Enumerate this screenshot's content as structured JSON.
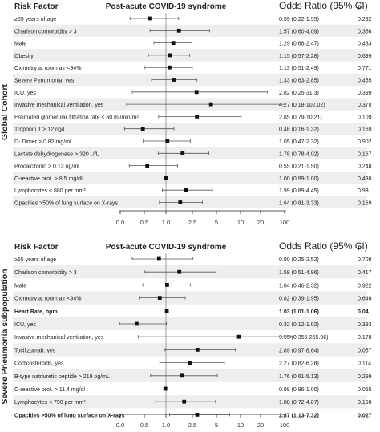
{
  "chart_data": [
    {
      "type": "forest",
      "group_label": "Global Cohort",
      "header": {
        "factor": "Risk Factor",
        "title": "Post-acute COVID-19 syndrome",
        "or": "Odds Ratio (95% CI)",
        "p": "p"
      },
      "x_ticks": [
        "0.0",
        "0.5",
        "1.0",
        "2.5",
        "5",
        "10",
        "20",
        "100"
      ],
      "x_tick_values": [
        0.125,
        0.5,
        1.0,
        2.5,
        5,
        10,
        20,
        100
      ],
      "reference_line": 1.0,
      "rows": [
        {
          "label": "≥65 years of age",
          "or": 0.59,
          "lo": 0.22,
          "hi": 1.55,
          "or_text": "0.59 (0.22-1.55)",
          "p": "0.292",
          "bold": false
        },
        {
          "label": "Charlson comorbidity > 3",
          "or": 1.57,
          "lo": 0.6,
          "hi": 4.09,
          "or_text": "1.57 (0.60-4.09)",
          "p": "0.356",
          "bold": false
        },
        {
          "label": "Male",
          "or": 1.29,
          "lo": 0.68,
          "hi": 2.47,
          "or_text": "1.29 (0.68-2.47)",
          "p": "0.433",
          "bold": false
        },
        {
          "label": "Obesity",
          "or": 1.15,
          "lo": 0.57,
          "hi": 2.28,
          "or_text": "1.15 (0.57-2.28)",
          "p": "0.699",
          "bold": false
        },
        {
          "label": "Oximetry at room air <94%",
          "or": 1.13,
          "lo": 0.51,
          "hi": 2.49,
          "or_text": "1.13 (0.51-2.49)",
          "p": "0.771",
          "bold": false
        },
        {
          "label": "Severe Penumonia, yes",
          "or": 1.33,
          "lo": 0.63,
          "hi": 2.85,
          "or_text": "1.33 (0.63-2.85)",
          "p": "0.455",
          "bold": false
        },
        {
          "label": "ICU, yes",
          "or": 2.82,
          "lo": 0.25,
          "hi": 31.3,
          "or_text": "2.82 (0.25-31.3)",
          "p": "0.399",
          "bold": false
        },
        {
          "label": "Invasive mechanical ventilation, yes",
          "or": 4.27,
          "lo": 0.18,
          "hi": 102.02,
          "or_text": "4.27 (0.18-102.02)",
          "p": "0.370",
          "bold": false
        },
        {
          "label": "Estimated glomerular filtration rate ≤ 60 ml/min/m²",
          "or": 2.85,
          "lo": 0.79,
          "hi": 10.21,
          "or_text": "2.85 (0.79-10.21)",
          "p": "0.109",
          "bold": false
        },
        {
          "label": "Troponin T > 12 ng/L",
          "or": 0.46,
          "lo": 0.16,
          "hi": 1.32,
          "or_text": "0.46 (0.16-1.32)",
          "p": "0.169",
          "bold": false
        },
        {
          "label": "D- Dimer > 0.82 mg/mL",
          "or": 1.05,
          "lo": 0.47,
          "hi": 2.32,
          "or_text": "1.05 (0.47-2.32)",
          "p": "0.902",
          "bold": false
        },
        {
          "label": "Lactate dehydrogenase > 320 U/L",
          "or": 1.78,
          "lo": 0.78,
          "hi": 4.02,
          "or_text": "1.78 (0.78-4.02)",
          "p": "0.167",
          "bold": false
        },
        {
          "label": "Procalcitonin > 0.13 ng/ml",
          "or": 0.55,
          "lo": 0.21,
          "hi": 1.5,
          "or_text": "0.55 (0.21-1.50)",
          "p": "0.248",
          "bold": false
        },
        {
          "label": "C-reactive prot. > 8.5 mg/dl",
          "or": 1.0,
          "lo": 0.99,
          "hi": 1.0,
          "or_text": "1.00 (0.99-1.00)",
          "p": "0.438",
          "bold": false
        },
        {
          "label": "Lymphocytes < 880 per mm³",
          "or": 1.99,
          "lo": 0.89,
          "hi": 4.45,
          "or_text": "1.99 (0.89-4.45)",
          "p": "0.93",
          "bold": false
        },
        {
          "label": "Opacities >50% of lung surface on X-rays",
          "or": 1.64,
          "lo": 0.81,
          "hi": 3.33,
          "or_text": "1.64 (0.81-3.33)",
          "p": "0.169",
          "bold": false
        }
      ]
    },
    {
      "type": "forest",
      "group_label": "Severe Pneumonia subpopulation",
      "header": {
        "factor": "Risk Factor",
        "title": "Post-acute COVID-19 syndrome",
        "or": "Odds Ratio (95% CI)",
        "p": "p"
      },
      "x_ticks": [
        "0.0",
        "0.5",
        "1.0",
        "2.5",
        "5",
        "10",
        "20",
        "100"
      ],
      "x_tick_values": [
        0.125,
        0.5,
        1.0,
        2.5,
        5,
        10,
        20,
        100
      ],
      "reference_line": 1.0,
      "rows": [
        {
          "label": "≥65 years of age",
          "or": 0.8,
          "lo": 0.25,
          "hi": 2.52,
          "or_text": "0.80 (0.25-2.52)",
          "p": "0.708",
          "bold": false
        },
        {
          "label": "Charlson comorbidity > 3",
          "or": 1.59,
          "lo": 0.51,
          "hi": 4.96,
          "or_text": "1.59 (0.51-4.96)",
          "p": "0.417",
          "bold": false
        },
        {
          "label": "Male",
          "or": 1.04,
          "lo": 0.46,
          "hi": 2.32,
          "or_text": "1.04 (0.46-2.32)",
          "p": "0.922",
          "bold": false
        },
        {
          "label": "Oximetry at room air <94%",
          "or": 0.82,
          "lo": 0.39,
          "hi": 1.95,
          "or_text": "0.82 (0.39-1.95)",
          "p": "0.646",
          "bold": false
        },
        {
          "label": "Heart Rate, bpm",
          "or": 1.03,
          "lo": 1.01,
          "hi": 1.06,
          "or_text": "1.03 (1.01-1.06)",
          "p": "0.04",
          "bold": true
        },
        {
          "label": "ICU, yes",
          "or": 0.32,
          "lo": 0.12,
          "hi": 1.02,
          "or_text": "0.32 (0.12-1.02)",
          "p": "0.393",
          "bold": false
        },
        {
          "label": "Invasive mechanical ventilation, yes",
          "or": 9.55,
          "lo": 0.35,
          "hi": 255.96,
          "or_text": "9.55 (0.355-255.96)",
          "p": "0.178",
          "bold": false
        },
        {
          "label": "Tocilizumab, yes",
          "or": 2.89,
          "lo": 0.97,
          "hi": 8.64,
          "or_text": "2.89 (0.97-8.64)",
          "p": "0.057",
          "bold": false
        },
        {
          "label": "Corticosteroids, yes",
          "or": 2.27,
          "lo": 0.82,
          "hi": 6.28,
          "or_text": "2.27 (0.82-6.28)",
          "p": "0.114",
          "bold": false
        },
        {
          "label": "B-type natriuretic peptide > 219 pg/mL",
          "or": 1.76,
          "lo": 0.61,
          "hi": 5.13,
          "or_text": "1.76 (0.61-5.13)",
          "p": "0.299",
          "bold": false
        },
        {
          "label": "C-reactive prot. > 11.4 mg/dl",
          "or": 0.98,
          "lo": 0.96,
          "hi": 1.0,
          "or_text": "0.98 (0.96-1.00)",
          "p": "0.055",
          "bold": false
        },
        {
          "label": "Lymphocytes < 790 per mm³",
          "or": 1.88,
          "lo": 0.72,
          "hi": 4.87,
          "or_text": "1.88 (0.72-4.87)",
          "p": "0.198",
          "bold": false
        },
        {
          "label": "Opacities >50% of lung surface on X-rays",
          "or": 2.87,
          "lo": 1.13,
          "hi": 7.32,
          "or_text": "2.87 (1.13-7.32)",
          "p": "0.027",
          "bold": true
        }
      ]
    }
  ]
}
